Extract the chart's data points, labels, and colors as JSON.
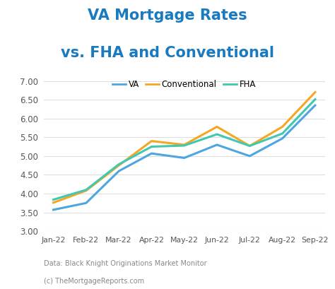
{
  "title_line1": "VA Mortgage Rates",
  "title_line2": "vs. FHA and Conventional",
  "title_color": "#1a7abf",
  "background_color": "#ffffff",
  "months": [
    "Jan-22",
    "Feb-22",
    "Mar-22",
    "Apr-22",
    "May-22",
    "Jun-22",
    "Jul-22",
    "Aug-22",
    "Sep-22"
  ],
  "va": [
    3.57,
    3.75,
    4.6,
    5.07,
    4.95,
    5.3,
    5.0,
    5.47,
    6.35
  ],
  "conventional": [
    3.76,
    4.08,
    4.75,
    5.4,
    5.3,
    5.78,
    5.27,
    5.78,
    6.7
  ],
  "fha": [
    3.84,
    4.1,
    4.78,
    5.25,
    5.28,
    5.58,
    5.27,
    5.6,
    6.51
  ],
  "va_color": "#4da6e0",
  "conventional_color": "#f5a623",
  "fha_color": "#40c8b0",
  "ylim_min": 3.0,
  "ylim_max": 7.0,
  "yticks": [
    3.0,
    3.5,
    4.0,
    4.5,
    5.0,
    5.5,
    6.0,
    6.5,
    7.0
  ],
  "footnote_line1": "Data: Black Knight Originations Market Monitor",
  "footnote_line2": "(c) TheMortgageReports.com",
  "linewidth": 2.2,
  "title_fontsize": 15,
  "tick_label_color": "#555555",
  "footnote_color": "#888888",
  "footnote_fontsize": 7.0,
  "grid_color": "#dddddd"
}
